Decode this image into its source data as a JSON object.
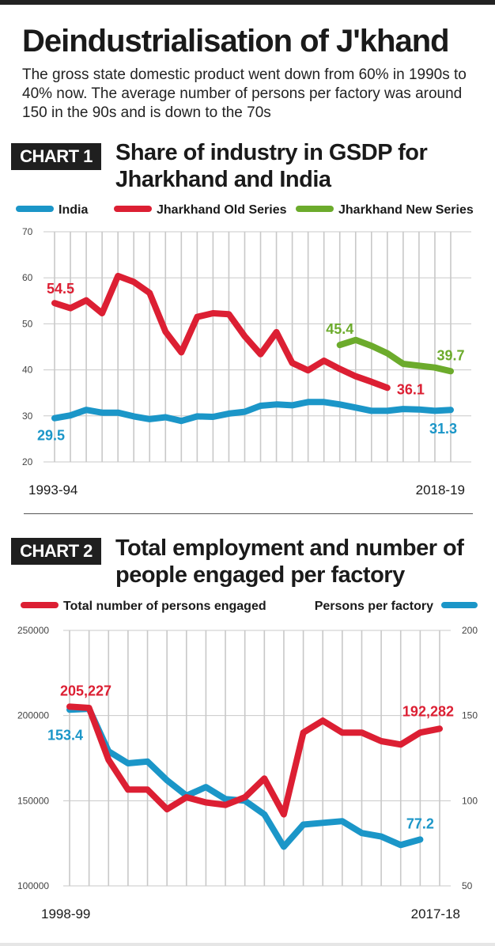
{
  "header": {
    "title": "Deindustrialisation of J'khand",
    "subtitle": "The gross state domestic product went down from 60% in 1990s to 40% now. The average number of persons per factory was around 150 in the 90s and is down to the 70s"
  },
  "colors": {
    "india": "#1b96c8",
    "jh_old": "#dc1f33",
    "jh_new": "#6cab2c",
    "grid": "#c8c8c8",
    "text": "#1a1a1a"
  },
  "chart_data": [
    {
      "type": "line",
      "badge": "CHART 1",
      "title": "Share of industry in GSDP for Jharkhand and India",
      "x_labels": [
        "1993-94",
        "2018-19"
      ],
      "ylim": [
        20,
        70
      ],
      "yticks": [
        "20",
        "30",
        "40",
        "50",
        "60",
        "70"
      ],
      "grid": true,
      "legend": "top",
      "series": [
        {
          "name": "India",
          "color": "#1b96c8",
          "start_index": 0,
          "values": [
            29.5,
            30.1,
            31.3,
            30.7,
            30.7,
            29.9,
            29.3,
            29.7,
            28.9,
            29.9,
            29.8,
            30.5,
            30.9,
            32.2,
            32.5,
            32.3,
            33.0,
            33.0,
            32.5,
            31.8,
            31.1,
            31.1,
            31.5,
            31.4,
            31.1,
            31.3
          ],
          "labels": [
            {
              "index": 0,
              "text": "29.5"
            },
            {
              "index": 25,
              "text": "31.3"
            }
          ]
        },
        {
          "name": "Jharkhand Old Series",
          "color": "#dc1f33",
          "start_index": 0,
          "values": [
            54.5,
            53.4,
            55.1,
            52.3,
            60.4,
            59.1,
            56.7,
            48.3,
            43.8,
            51.5,
            52.3,
            52.1,
            47.3,
            43.4,
            48.2,
            41.5,
            39.9,
            42.0,
            40.2,
            38.6,
            37.4,
            36.1
          ],
          "labels": [
            {
              "index": 0,
              "text": "54.5"
            },
            {
              "index": 21,
              "text": "36.1"
            }
          ]
        },
        {
          "name": "Jharkhand New Series",
          "color": "#6cab2c",
          "start_index": 18,
          "values": [
            45.4,
            46.5,
            45.2,
            43.6,
            41.3,
            40.9,
            40.5,
            39.7
          ],
          "labels": [
            {
              "index": 0,
              "text": "45.4"
            },
            {
              "index": 7,
              "text": "39.7"
            }
          ]
        }
      ]
    },
    {
      "type": "line",
      "badge": "CHART 2",
      "title": "Total employment and number of people engaged per factory",
      "x_labels": [
        "1998-99",
        "2017-18"
      ],
      "ylim_left": [
        100000,
        250000
      ],
      "yticks_left": [
        "100000",
        "150000",
        "200000",
        "250000"
      ],
      "ylim_right": [
        50,
        200
      ],
      "yticks_right": [
        "50",
        "100",
        "150",
        "200"
      ],
      "grid": true,
      "legend": "top",
      "series": [
        {
          "name": "Total number of persons engaged",
          "color": "#dc1f33",
          "axis": "left",
          "values": [
            205227,
            204500,
            174000,
            156500,
            156500,
            145000,
            152000,
            149000,
            147500,
            152000,
            163000,
            142000,
            190000,
            197000,
            190000,
            190000,
            185000,
            183000,
            190000,
            192282
          ],
          "labels": [
            {
              "index": 0,
              "text": "205,227"
            },
            {
              "index": 19,
              "text": "192,282"
            }
          ]
        },
        {
          "name": "Persons per factory",
          "color": "#1b96c8",
          "axis": "right",
          "values": [
            153.4,
            154,
            129,
            122,
            123,
            112,
            103,
            108,
            101,
            100,
            92,
            73,
            86,
            87,
            88,
            81,
            79,
            74,
            77.2
          ],
          "labels": [
            {
              "index": 0,
              "text": "153.4"
            },
            {
              "index": 18,
              "text": "77.2"
            }
          ]
        }
      ]
    }
  ]
}
